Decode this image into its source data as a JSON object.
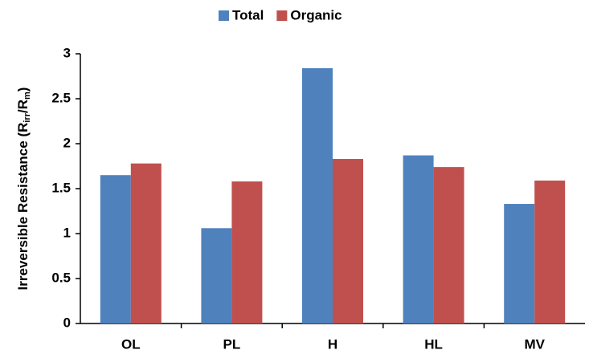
{
  "chart_data": {
    "type": "bar",
    "y_label": [
      "Irreversible Resistance (R",
      "irr",
      "/R",
      "m",
      ")"
    ],
    "categories": [
      "OL",
      "PL",
      "H",
      "HL",
      "MV"
    ],
    "series": [
      {
        "name": "Total",
        "color": "#4f81bd",
        "values": [
          1.65,
          1.06,
          2.84,
          1.87,
          1.33
        ]
      },
      {
        "name": "Organic",
        "color": "#c0504d",
        "values": [
          1.78,
          1.58,
          1.83,
          1.74,
          1.59
        ]
      }
    ],
    "ylim": [
      0,
      3
    ],
    "yticks": [
      0,
      0.5,
      1,
      1.5,
      2,
      2.5,
      3
    ],
    "grid": false,
    "legend": "top"
  }
}
